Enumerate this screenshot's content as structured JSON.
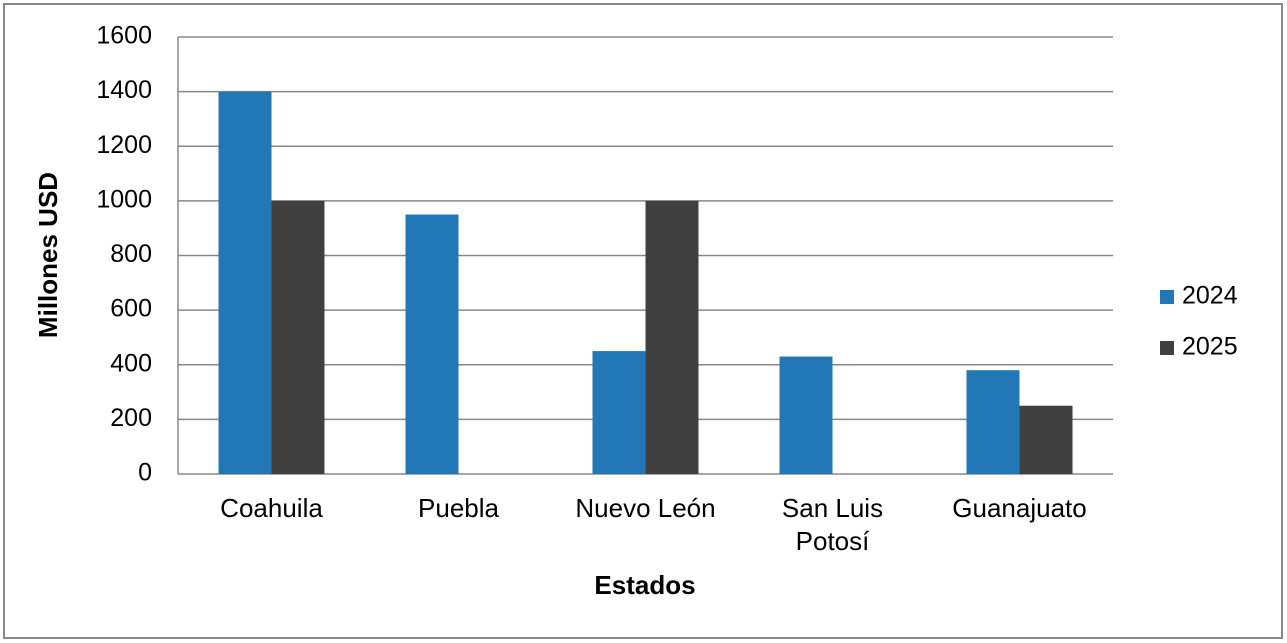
{
  "chart_data": {
    "type": "bar",
    "x_label": "Estados",
    "y_label": "Millones USD",
    "categories": [
      "Coahuila",
      "Puebla",
      "Nuevo León",
      "San Luis Potosí",
      "Guanajuato"
    ],
    "series": [
      {
        "name": "2024",
        "color": "#2277b6",
        "values": [
          1400,
          950,
          450,
          430,
          380
        ]
      },
      {
        "name": "2025",
        "color": "#404040",
        "values": [
          1000,
          null,
          1000,
          null,
          250
        ]
      }
    ],
    "ylim": [
      0,
      1600
    ],
    "yticks": [
      0,
      200,
      400,
      600,
      800,
      1000,
      1200,
      1400,
      1600
    ],
    "grid": true,
    "legend": "right"
  }
}
